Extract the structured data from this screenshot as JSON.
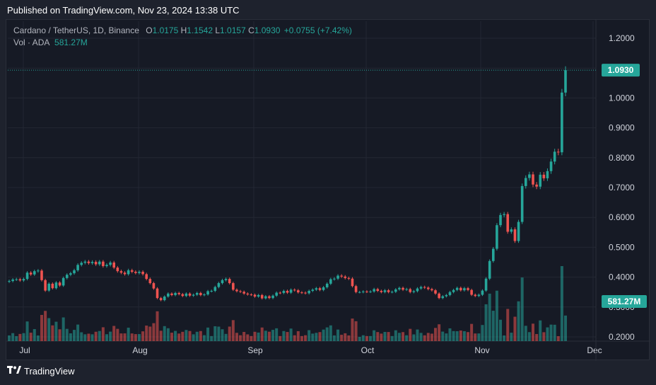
{
  "published": "Published on TradingView.com, Nov 23, 2024 13:38 UTC",
  "legend": {
    "symbol": "Cardano / TetherUS, 1D, Binance",
    "o_label": "O",
    "o": "1.0175",
    "h_label": "H",
    "h": "1.1542",
    "l_label": "L",
    "l": "1.0157",
    "c_label": "C",
    "c": "1.0930",
    "change": "+0.0755 (+7.42%)",
    "vol_label": "Vol · ADA",
    "vol": "581.27M"
  },
  "brand": "TradingView",
  "colors": {
    "up": "#26a69a",
    "down": "#ef5350",
    "bg": "#161a25",
    "grid": "#232733"
  },
  "chart_data": {
    "type": "candlestick",
    "x_axis_ticks": [
      "Jul",
      "Aug",
      "Sep",
      "Oct",
      "Nov",
      "Dec"
    ],
    "y_axis_ticks": [
      "1.2000",
      "1.1000",
      "1.0000",
      "0.9000",
      "0.8000",
      "0.7000",
      "0.6000",
      "0.5000",
      "0.4000",
      "0.3000",
      "0.2000"
    ],
    "ylim": [
      0.2,
      1.2
    ],
    "grid": true,
    "last_price_label": "1.0930",
    "volume_label": "581.27M",
    "series_up_color": "#26a69a",
    "series_down_color": "#ef5350",
    "close": [
      0.387,
      0.392,
      0.393,
      0.389,
      0.394,
      0.415,
      0.409,
      0.42,
      0.422,
      0.39,
      0.355,
      0.378,
      0.363,
      0.382,
      0.372,
      0.397,
      0.408,
      0.413,
      0.423,
      0.441,
      0.448,
      0.452,
      0.447,
      0.451,
      0.443,
      0.452,
      0.437,
      0.441,
      0.449,
      0.432,
      0.42,
      0.415,
      0.41,
      0.423,
      0.418,
      0.414,
      0.418,
      0.41,
      0.394,
      0.38,
      0.362,
      0.33,
      0.323,
      0.335,
      0.345,
      0.34,
      0.347,
      0.343,
      0.337,
      0.345,
      0.338,
      0.341,
      0.347,
      0.34,
      0.342,
      0.353,
      0.354,
      0.367,
      0.38,
      0.39,
      0.394,
      0.38,
      0.358,
      0.353,
      0.351,
      0.345,
      0.342,
      0.341,
      0.335,
      0.34,
      0.329,
      0.336,
      0.33,
      0.338,
      0.348,
      0.347,
      0.354,
      0.348,
      0.358,
      0.356,
      0.349,
      0.348,
      0.346,
      0.354,
      0.358,
      0.363,
      0.357,
      0.366,
      0.378,
      0.393,
      0.395,
      0.405,
      0.402,
      0.397,
      0.395,
      0.37,
      0.35,
      0.35,
      0.352,
      0.351,
      0.352,
      0.36,
      0.354,
      0.35,
      0.356,
      0.35,
      0.351,
      0.359,
      0.364,
      0.358,
      0.36,
      0.35,
      0.353,
      0.362,
      0.367,
      0.365,
      0.36,
      0.356,
      0.345,
      0.33,
      0.336,
      0.34,
      0.35,
      0.357,
      0.364,
      0.356,
      0.363,
      0.357,
      0.341,
      0.337,
      0.341,
      0.355,
      0.395,
      0.454,
      0.495,
      0.574,
      0.608,
      0.611,
      0.552,
      0.56,
      0.521,
      0.585,
      0.705,
      0.732,
      0.744,
      0.71,
      0.703,
      0.743,
      0.731,
      0.755,
      0.787,
      0.82,
      0.818,
      1.018,
      1.093
    ]
  }
}
